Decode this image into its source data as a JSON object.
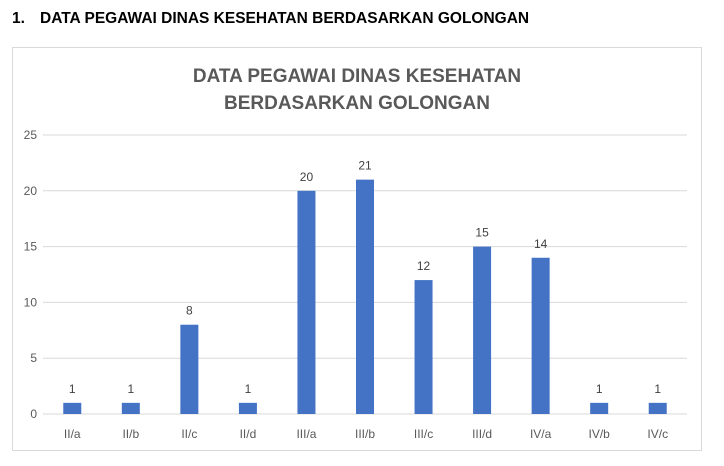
{
  "heading": {
    "number": "1.",
    "text": "DATA PEGAWAI DINAS KESEHATAN BERDASARKAN GOLONGAN"
  },
  "colors": {
    "bar": "#4472c4",
    "grid": "#d9d9d9",
    "axis_text": "#595959"
  },
  "chart_data": {
    "type": "bar",
    "title_lines": [
      "DATA PEGAWAI DINAS KESEHATAN",
      "BERDASARKAN GOLONGAN"
    ],
    "categories": [
      "II/a",
      "II/b",
      "II/c",
      "II/d",
      "III/a",
      "III/b",
      "III/c",
      "III/d",
      "IV/a",
      "IV/b",
      "IV/c"
    ],
    "values": [
      1,
      1,
      8,
      1,
      20,
      21,
      12,
      15,
      14,
      1,
      1
    ],
    "ylim": [
      0,
      25
    ],
    "yticks": [
      0,
      5,
      10,
      15,
      20,
      25
    ],
    "grid": true,
    "data_labels": true,
    "legend": "none"
  }
}
